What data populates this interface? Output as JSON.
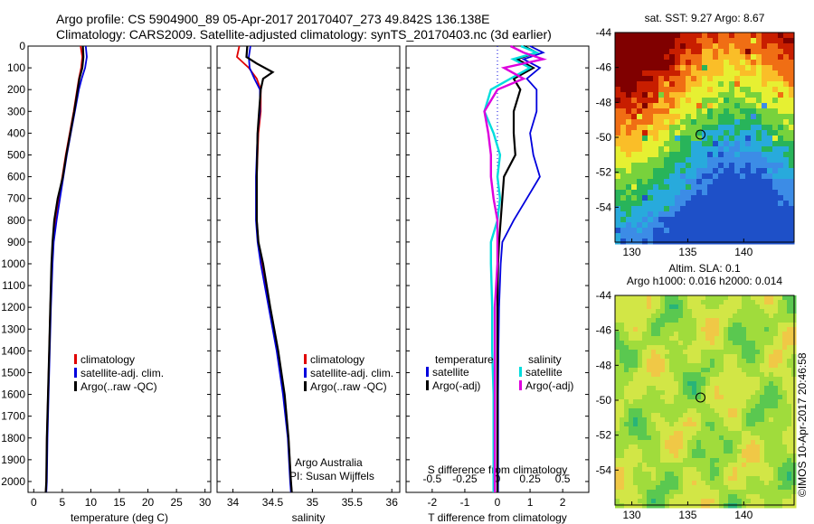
{
  "header": {
    "line1": "Argo profile: CS 5904900_89 05-Apr-2017 20170407_273 49.842S 136.138E",
    "line2": "Climatology: CARS2009. Satellite-adjusted climatology: synTS_20170403.nc (3d earlier)"
  },
  "side_text": "©IMOS 10-Apr-2017 20:46:58",
  "credit": {
    "line1": "Argo Australia",
    "line2": "PI: Susan Wijffels"
  },
  "depth_ticks": [
    "0",
    "100",
    "200",
    "300",
    "400",
    "500",
    "600",
    "700",
    "800",
    "900",
    "1000",
    "1100",
    "1200",
    "1300",
    "1400",
    "1500",
    "1600",
    "1700",
    "1800",
    "1900",
    "2000"
  ],
  "colors": {
    "climatology": "#e00000",
    "satellite": "#0000dd",
    "argo": "#000000",
    "sal_sat": "#00dddd",
    "sal_argo": "#dd00dd"
  },
  "chart_data": [
    {
      "type": "line",
      "name": "temperature",
      "xlabel": "temperature (deg C)",
      "ylim": [
        2050,
        0
      ],
      "xlim": [
        -1,
        31
      ],
      "xticks": [
        "0",
        "5",
        "10",
        "15",
        "20",
        "25",
        "30"
      ],
      "legend": [
        "climatology",
        "satellite-adj. clim.",
        "Argo(..raw -QC)"
      ],
      "series": [
        {
          "name": "climatology",
          "color": "#e00000",
          "depth": [
            0,
            50,
            100,
            150,
            200,
            300,
            400,
            500,
            600,
            700,
            800,
            900,
            1000,
            1200,
            1400,
            1600,
            1800,
            2000,
            2050
          ],
          "values": [
            8.2,
            8.5,
            8.3,
            7.9,
            7.6,
            7.0,
            6.3,
            5.6,
            5.0,
            4.4,
            3.8,
            3.4,
            3.2,
            2.9,
            2.7,
            2.5,
            2.3,
            2.2,
            2.1
          ]
        },
        {
          "name": "satellite-adj. clim.",
          "color": "#0000dd",
          "depth": [
            0,
            50,
            100,
            150,
            200,
            300,
            400,
            500,
            600,
            700,
            800,
            900,
            1000,
            1200,
            1400,
            1600,
            1800,
            2000,
            2050
          ],
          "values": [
            9.1,
            9.3,
            9.0,
            8.4,
            7.9,
            7.2,
            6.5,
            5.8,
            5.2,
            4.6,
            4.0,
            3.5,
            3.3,
            3.0,
            2.8,
            2.6,
            2.4,
            2.3,
            2.2
          ]
        },
        {
          "name": "Argo(..raw -QC)",
          "color": "#000000",
          "depth": [
            0,
            50,
            100,
            150,
            200,
            300,
            400,
            500,
            600,
            700,
            800,
            900,
            1000,
            1200,
            1400,
            1600,
            1800,
            2000,
            2050
          ],
          "values": [
            8.6,
            8.7,
            8.5,
            8.0,
            7.7,
            7.1,
            6.4,
            5.7,
            5.1,
            4.2,
            3.6,
            3.3,
            3.1,
            2.9,
            2.7,
            2.5,
            2.3,
            2.2,
            2.1
          ]
        }
      ]
    },
    {
      "type": "line",
      "name": "salinity",
      "xlabel": "salinity",
      "ylim": [
        2050,
        0
      ],
      "xlim": [
        33.8,
        36.1
      ],
      "xticks": [
        "34",
        "34.5",
        "35",
        "35.5",
        "36"
      ],
      "legend": [
        "climatology",
        "satellite-adj. clim.",
        "Argo(..raw -QC)"
      ],
      "series": [
        {
          "name": "climatology",
          "color": "#e00000",
          "depth": [
            0,
            50,
            100,
            150,
            200,
            300,
            400,
            600,
            800,
            900,
            1000,
            1200,
            1400,
            1600,
            1800,
            2000,
            2050
          ],
          "values": [
            34.08,
            34.05,
            34.2,
            34.3,
            34.35,
            34.35,
            34.32,
            34.3,
            34.3,
            34.32,
            34.36,
            34.46,
            34.56,
            34.64,
            34.7,
            34.73,
            34.74
          ]
        },
        {
          "name": "satellite-adj. clim.",
          "color": "#0000dd",
          "depth": [
            0,
            50,
            100,
            150,
            200,
            300,
            400,
            600,
            800,
            900,
            1000,
            1200,
            1400,
            1600,
            1800,
            2000,
            2050
          ],
          "values": [
            34.22,
            34.2,
            34.21,
            34.27,
            34.34,
            34.34,
            34.31,
            34.29,
            34.29,
            34.31,
            34.35,
            34.45,
            34.55,
            34.63,
            34.69,
            34.72,
            34.73
          ]
        },
        {
          "name": "Argo(..raw -QC)",
          "color": "#000000",
          "depth": [
            0,
            50,
            80,
            120,
            150,
            200,
            300,
            400,
            600,
            800,
            900,
            1000,
            1200,
            1400,
            1600,
            1800,
            2000,
            2050
          ],
          "values": [
            34.18,
            34.17,
            34.3,
            34.5,
            34.38,
            34.35,
            34.33,
            34.31,
            34.3,
            34.3,
            34.32,
            34.38,
            34.47,
            34.57,
            34.65,
            34.7,
            34.73,
            34.74
          ]
        }
      ]
    },
    {
      "type": "line",
      "name": "differences",
      "xlabel": "T difference from climatology",
      "xlabel_top": "S difference from climatology",
      "ylim": [
        2050,
        0
      ],
      "xlim": [
        -2.8,
        2.8
      ],
      "xticks": [
        "-2",
        "-1",
        "0",
        "1",
        "2"
      ],
      "xticks_top": [
        "-0.5",
        "-0.25",
        "0",
        "0.25",
        "0.5"
      ],
      "legend_t": {
        "head": "temperature",
        "items": [
          "satellite",
          "Argo(-adj)"
        ]
      },
      "legend_s": {
        "head": "salinity",
        "items": [
          "satellite",
          "Argo(-adj)"
        ]
      },
      "series": [
        {
          "name": "satellite",
          "color": "#0000dd",
          "depth": [
            0,
            30,
            60,
            100,
            150,
            200,
            300,
            400,
            500,
            600,
            700,
            800,
            900,
            1000,
            1200,
            1400,
            1600,
            1800,
            2000,
            2050
          ],
          "values": [
            1.0,
            1.4,
            0.8,
            1.3,
            0.9,
            1.2,
            1.2,
            1.0,
            1.1,
            1.3,
            0.9,
            0.5,
            0.15,
            0.1,
            0.05,
            0.03,
            0.02,
            0.02,
            0.02,
            0.02
          ]
        },
        {
          "name": "Argo(-adj)",
          "color": "#000000",
          "depth": [
            0,
            30,
            60,
            100,
            150,
            200,
            300,
            400,
            500,
            600,
            700,
            800,
            900,
            1000,
            1200,
            1400,
            1600,
            1800,
            2000,
            2050
          ],
          "values": [
            0.8,
            1.2,
            0.6,
            1.1,
            0.5,
            0.7,
            0.5,
            0.5,
            0.55,
            0.2,
            0.15,
            0.1,
            0.05,
            0.02,
            0.0,
            0.0,
            0.0,
            0.0,
            0.0,
            0.0
          ]
        },
        {
          "name": "salinity satellite",
          "color": "#00dddd",
          "depth": [
            0,
            30,
            60,
            100,
            150,
            200,
            300,
            400,
            500,
            600,
            700,
            800,
            900,
            1000,
            1200,
            1400,
            1600,
            1800,
            2000,
            2050
          ],
          "values": [
            0.18,
            0.3,
            0.12,
            0.25,
            0.1,
            -0.05,
            -0.1,
            -0.03,
            0.02,
            0.0,
            0.02,
            0.0,
            -0.05,
            -0.05,
            -0.04,
            -0.04,
            -0.03,
            -0.03,
            -0.03,
            -0.03
          ]
        },
        {
          "name": "salinity Argo(-adj)",
          "color": "#dd00dd",
          "depth": [
            0,
            30,
            60,
            100,
            150,
            200,
            300,
            400,
            500,
            600,
            700,
            800,
            900,
            1000,
            1200,
            1400,
            1600,
            1800,
            2000,
            2050
          ],
          "values": [
            0.1,
            0.2,
            0.35,
            0.05,
            0.2,
            0.0,
            -0.1,
            -0.07,
            -0.05,
            -0.05,
            -0.03,
            0.0,
            0.0,
            0.0,
            -0.02,
            -0.02,
            -0.02,
            -0.02,
            -0.02,
            -0.02
          ]
        }
      ]
    },
    {
      "type": "heatmap",
      "name": "sst-map",
      "title": "sat. SST: 9.27  Argo: 8.67",
      "xticks": [
        "130",
        "135",
        "140"
      ],
      "yticks": [
        "-44",
        "-46",
        "-48",
        "-50",
        "-52",
        "-54"
      ],
      "xlim": [
        128.5,
        144.5
      ],
      "ylim": [
        -56,
        -44
      ],
      "marker": {
        "lon": 136.138,
        "lat": -49.842
      }
    },
    {
      "type": "heatmap",
      "name": "sla-map",
      "title": "Altim. SLA: 0.1",
      "title2": "Argo h1000: 0.016  h2000: 0.014",
      "xticks": [
        "130",
        "135",
        "140"
      ],
      "yticks": [
        "-44",
        "-46",
        "-48",
        "-50",
        "-52",
        "-54"
      ],
      "xlim": [
        128.5,
        144.5
      ],
      "ylim": [
        -56,
        -44
      ],
      "marker": {
        "lon": 136.138,
        "lat": -49.842
      }
    }
  ]
}
